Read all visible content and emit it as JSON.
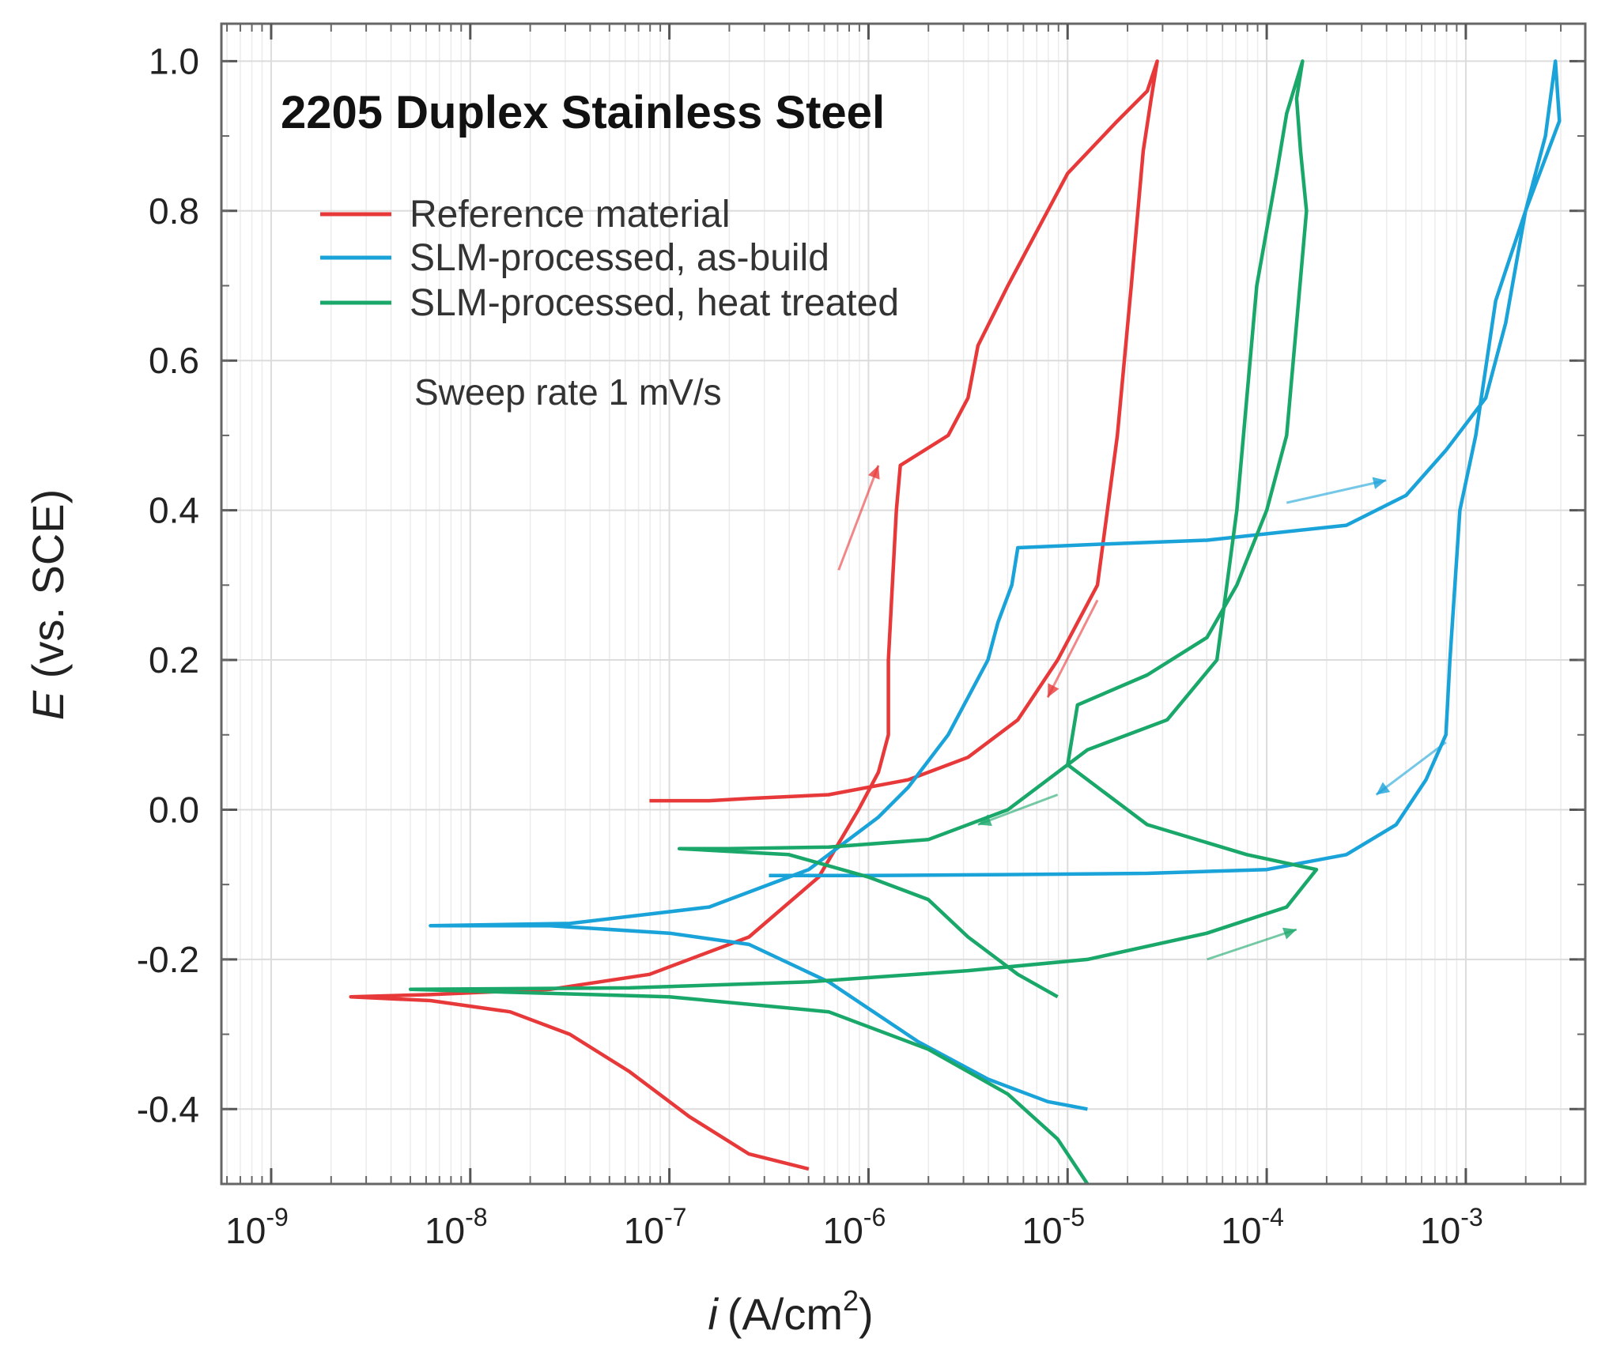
{
  "chart_data": {
    "type": "line",
    "title": "2205 Duplex Stainless Steel",
    "xlabel": "i (A/cm2)",
    "xlabel_var": "i",
    "xlabel_unit": "(A/cm",
    "xlabel_unit_sup": "2",
    "xlabel_unit_end": ")",
    "ylabel": "E (vs. SCE)",
    "ylabel_var": "E",
    "ylabel_rest": " (vs. SCE)",
    "xscale": "log",
    "xlim_exp": [
      -9.25,
      -2.4
    ],
    "ylim": [
      -0.5,
      1.05
    ],
    "x_ticks": [
      {
        "exp": -9,
        "base": "10",
        "power": "-9"
      },
      {
        "exp": -8,
        "base": "10",
        "power": "-8"
      },
      {
        "exp": -7,
        "base": "10",
        "power": "-7"
      },
      {
        "exp": -6,
        "base": "10",
        "power": "-6"
      },
      {
        "exp": -5,
        "base": "10",
        "power": "-5"
      },
      {
        "exp": -4,
        "base": "10",
        "power": "-4"
      },
      {
        "exp": -3,
        "base": "10",
        "power": "-3"
      }
    ],
    "y_ticks": [
      {
        "value": 1.0,
        "label": "1.0"
      },
      {
        "value": 0.8,
        "label": "0.8"
      },
      {
        "value": 0.6,
        "label": "0.6"
      },
      {
        "value": 0.4,
        "label": "0.4"
      },
      {
        "value": 0.2,
        "label": "0.2"
      },
      {
        "value": 0.0,
        "label": "0.0"
      },
      {
        "value": -0.2,
        "label": "-0.2"
      },
      {
        "value": -0.4,
        "label": "-0.4"
      }
    ],
    "grid": true,
    "legend_position": "top-left",
    "annotation": "Sweep rate 1 mV/s",
    "series": [
      {
        "name": "Reference material",
        "color": "#e8393a",
        "points": [
          [
            -6.3,
            -0.48
          ],
          [
            -6.6,
            -0.46
          ],
          [
            -6.9,
            -0.41
          ],
          [
            -7.2,
            -0.35
          ],
          [
            -7.5,
            -0.3
          ],
          [
            -7.8,
            -0.27
          ],
          [
            -8.2,
            -0.255
          ],
          [
            -8.6,
            -0.25
          ],
          [
            -8.2,
            -0.247
          ],
          [
            -7.6,
            -0.24
          ],
          [
            -7.1,
            -0.22
          ],
          [
            -6.6,
            -0.17
          ],
          [
            -6.25,
            -0.09
          ],
          [
            -6.05,
            0.0
          ],
          [
            -5.95,
            0.05
          ],
          [
            -5.9,
            0.1
          ],
          [
            -5.9,
            0.2
          ],
          [
            -5.88,
            0.3
          ],
          [
            -5.86,
            0.4
          ],
          [
            -5.84,
            0.46
          ],
          [
            -5.6,
            0.5
          ],
          [
            -5.5,
            0.55
          ],
          [
            -5.45,
            0.62
          ],
          [
            -5.3,
            0.7
          ],
          [
            -5.2,
            0.75
          ],
          [
            -5.0,
            0.85
          ],
          [
            -4.75,
            0.92
          ],
          [
            -4.6,
            0.96
          ],
          [
            -4.55,
            1.0
          ],
          [
            -4.58,
            0.95
          ],
          [
            -4.62,
            0.88
          ],
          [
            -4.68,
            0.7
          ],
          [
            -4.75,
            0.5
          ],
          [
            -4.85,
            0.3
          ],
          [
            -5.05,
            0.2
          ],
          [
            -5.25,
            0.12
          ],
          [
            -5.5,
            0.07
          ],
          [
            -5.8,
            0.04
          ],
          [
            -6.2,
            0.02
          ],
          [
            -6.6,
            0.015
          ],
          [
            -6.8,
            0.012
          ],
          [
            -7.1,
            0.012
          ]
        ]
      },
      {
        "name": "SLM-processed, as-build",
        "color": "#1aa3d9",
        "points": [
          [
            -4.9,
            -0.4
          ],
          [
            -5.1,
            -0.39
          ],
          [
            -5.4,
            -0.36
          ],
          [
            -5.75,
            -0.31
          ],
          [
            -6.2,
            -0.23
          ],
          [
            -6.6,
            -0.18
          ],
          [
            -7.0,
            -0.165
          ],
          [
            -7.6,
            -0.155
          ],
          [
            -8.2,
            -0.155
          ],
          [
            -7.5,
            -0.152
          ],
          [
            -6.8,
            -0.13
          ],
          [
            -6.3,
            -0.08
          ],
          [
            -5.95,
            -0.01
          ],
          [
            -5.8,
            0.03
          ],
          [
            -5.6,
            0.1
          ],
          [
            -5.5,
            0.15
          ],
          [
            -5.4,
            0.2
          ],
          [
            -5.35,
            0.25
          ],
          [
            -5.28,
            0.3
          ],
          [
            -5.25,
            0.35
          ],
          [
            -4.8,
            0.355
          ],
          [
            -4.3,
            0.36
          ],
          [
            -3.6,
            0.38
          ],
          [
            -3.3,
            0.42
          ],
          [
            -3.1,
            0.48
          ],
          [
            -2.9,
            0.55
          ],
          [
            -2.8,
            0.65
          ],
          [
            -2.7,
            0.8
          ],
          [
            -2.6,
            0.9
          ],
          [
            -2.55,
            1.0
          ],
          [
            -2.53,
            0.92
          ],
          [
            -2.7,
            0.8
          ],
          [
            -2.85,
            0.68
          ],
          [
            -2.95,
            0.5
          ],
          [
            -3.03,
            0.4
          ],
          [
            -3.08,
            0.2
          ],
          [
            -3.1,
            0.1
          ],
          [
            -3.2,
            0.04
          ],
          [
            -3.35,
            -0.02
          ],
          [
            -3.6,
            -0.06
          ],
          [
            -4.0,
            -0.08
          ],
          [
            -4.6,
            -0.085
          ],
          [
            -5.4,
            -0.087
          ],
          [
            -6.0,
            -0.088
          ],
          [
            -6.5,
            -0.088
          ]
        ]
      },
      {
        "name": "SLM-processed, heat treated",
        "color": "#1aa86a",
        "points": [
          [
            -4.9,
            -0.5
          ],
          [
            -5.05,
            -0.44
          ],
          [
            -5.3,
            -0.38
          ],
          [
            -5.7,
            -0.32
          ],
          [
            -6.2,
            -0.27
          ],
          [
            -7.0,
            -0.25
          ],
          [
            -8.3,
            -0.24
          ],
          [
            -7.2,
            -0.238
          ],
          [
            -6.3,
            -0.23
          ],
          [
            -5.5,
            -0.215
          ],
          [
            -4.9,
            -0.2
          ],
          [
            -4.3,
            -0.165
          ],
          [
            -3.9,
            -0.13
          ],
          [
            -3.75,
            -0.08
          ],
          [
            -4.1,
            -0.06
          ],
          [
            -4.6,
            -0.02
          ],
          [
            -5.0,
            0.06
          ],
          [
            -4.95,
            0.14
          ],
          [
            -4.6,
            0.18
          ],
          [
            -4.3,
            0.23
          ],
          [
            -4.15,
            0.3
          ],
          [
            -4.0,
            0.4
          ],
          [
            -3.9,
            0.5
          ],
          [
            -3.85,
            0.65
          ],
          [
            -3.8,
            0.8
          ],
          [
            -3.83,
            0.88
          ],
          [
            -3.85,
            0.95
          ],
          [
            -3.82,
            1.0
          ],
          [
            -3.9,
            0.93
          ],
          [
            -3.95,
            0.85
          ],
          [
            -4.05,
            0.7
          ],
          [
            -4.1,
            0.55
          ],
          [
            -4.15,
            0.4
          ],
          [
            -4.25,
            0.2
          ],
          [
            -4.5,
            0.12
          ],
          [
            -4.9,
            0.08
          ],
          [
            -5.3,
            0.0
          ],
          [
            -5.7,
            -0.04
          ],
          [
            -6.2,
            -0.05
          ],
          [
            -6.7,
            -0.052
          ],
          [
            -6.95,
            -0.052
          ],
          [
            -6.4,
            -0.06
          ],
          [
            -6.0,
            -0.09
          ],
          [
            -5.7,
            -0.12
          ],
          [
            -5.5,
            -0.17
          ],
          [
            -5.25,
            -0.22
          ],
          [
            -5.05,
            -0.25
          ]
        ]
      }
    ]
  }
}
